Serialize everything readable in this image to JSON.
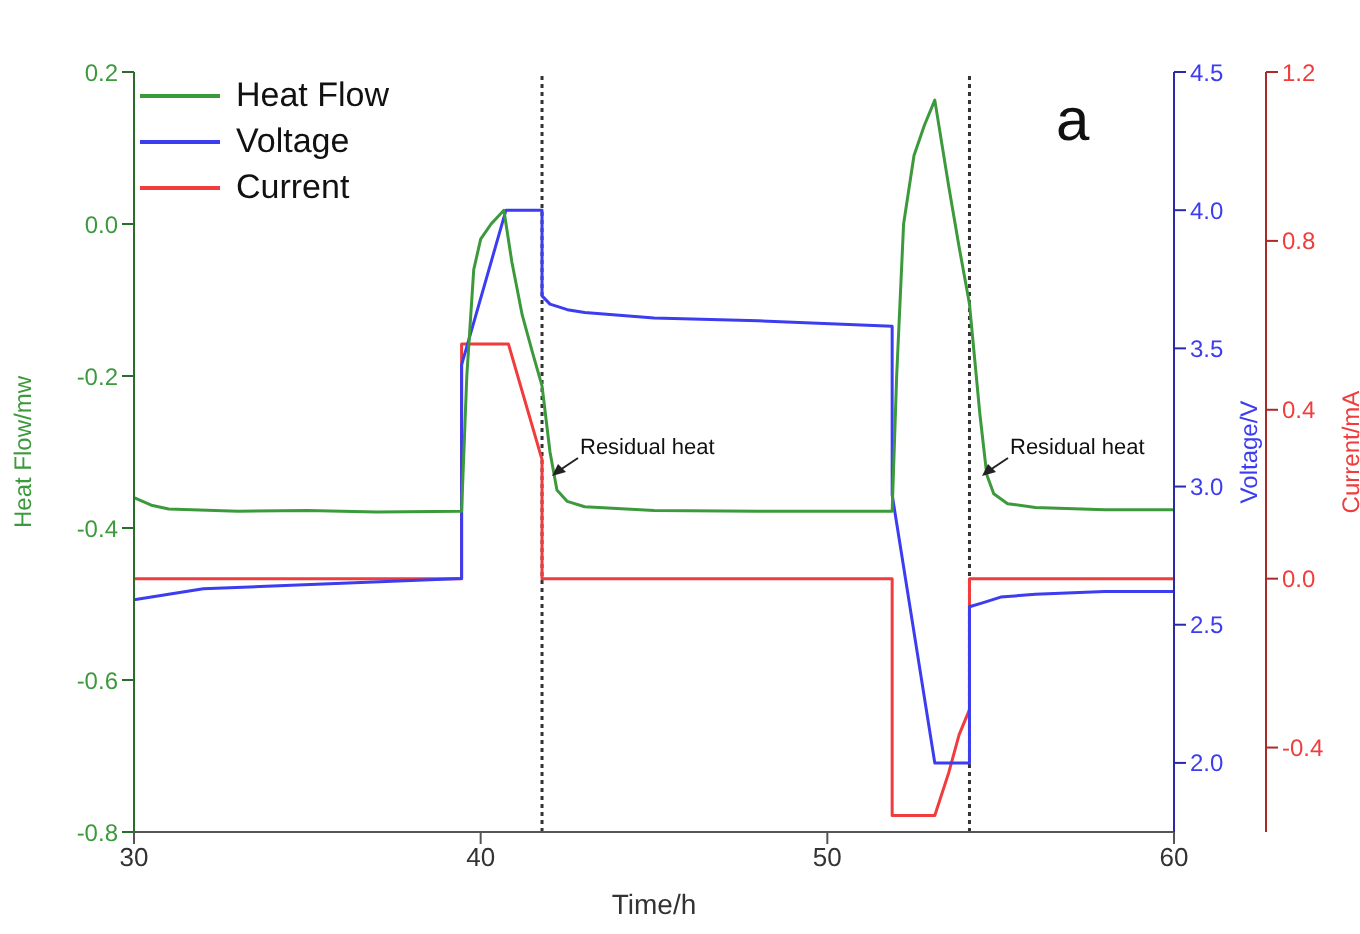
{
  "chart_data": {
    "type": "line",
    "xlabel": "Time/h",
    "ylabel": "Heat Flow/mw",
    "y2label": "Voltage/V",
    "y3label": "Current/mA",
    "xlim": [
      30,
      60
    ],
    "xticks": [
      30,
      40,
      50,
      60
    ],
    "ylim": [
      -0.8,
      0.2
    ],
    "yticks": [
      -0.8,
      -0.6,
      -0.4,
      -0.2,
      {
        "value": 0,
        "label": "0.0"
      },
      0.2
    ],
    "y2lim": [
      1.75,
      4.5
    ],
    "y2ticks": [
      {
        "value": 2,
        "label": "2.0"
      },
      2.5,
      {
        "value": 3,
        "label": "3.0"
      },
      3.5,
      {
        "value": 4,
        "label": "4.0"
      },
      4.5
    ],
    "y3lim": [
      -0.6,
      1.2
    ],
    "y3ticks": [
      -0.4,
      {
        "value": 0,
        "label": "0.0"
      },
      0.4,
      0.8,
      1.2
    ],
    "legend": "top left",
    "series": [
      {
        "name": "Heat Flow",
        "color": "#3c9a3c",
        "axis": "y",
        "x": [
          30,
          30.5,
          31,
          33,
          35,
          37,
          39.45,
          39.6,
          39.8,
          40,
          40.3,
          40.67,
          40.9,
          41.2,
          41.5,
          41.77,
          42,
          42.2,
          42.5,
          43,
          45,
          48,
          51.87,
          52,
          52.2,
          52.5,
          52.8,
          53.1,
          53.5,
          53.8,
          54.1,
          54.4,
          54.6,
          54.8,
          55.2,
          56,
          58,
          60
        ],
        "values": [
          -0.36,
          -0.37,
          -0.375,
          -0.378,
          -0.377,
          -0.379,
          -0.378,
          -0.2,
          -0.06,
          -0.02,
          0.0,
          0.018,
          -0.05,
          -0.12,
          -0.17,
          -0.213,
          -0.3,
          -0.35,
          -0.365,
          -0.372,
          -0.377,
          -0.378,
          -0.378,
          -0.2,
          0.0,
          0.09,
          0.13,
          0.163,
          0.05,
          -0.03,
          -0.105,
          -0.25,
          -0.33,
          -0.355,
          -0.368,
          -0.373,
          -0.376,
          -0.376
        ]
      },
      {
        "name": "Voltage",
        "color": "#3c3cf0",
        "axis": "y2",
        "x": [
          30,
          31,
          32,
          34,
          36,
          39.45,
          39.45,
          40.73,
          41.77,
          41.77,
          42,
          42.5,
          43,
          45,
          48,
          51.87,
          51.87,
          53.1,
          54.1,
          54.1,
          54.5,
          55,
          56,
          58,
          60
        ],
        "values": [
          2.59,
          2.61,
          2.63,
          2.64,
          2.65,
          2.667,
          3.44,
          4.0,
          4.0,
          3.69,
          3.66,
          3.64,
          3.63,
          3.61,
          3.6,
          3.58,
          2.97,
          2.0,
          2.0,
          2.565,
          2.58,
          2.6,
          2.61,
          2.62,
          2.62
        ]
      },
      {
        "name": "Current",
        "color": "#f03c3c",
        "axis": "y3",
        "x": [
          30,
          39.45,
          39.45,
          40.8,
          41.77,
          41.77,
          51.87,
          51.87,
          53.1,
          53.5,
          53.8,
          54.1,
          54.1,
          60
        ],
        "values": [
          0.0,
          0.0,
          0.556,
          0.556,
          0.282,
          0.0,
          0.0,
          -0.561,
          -0.561,
          -0.46,
          -0.37,
          -0.31,
          0.0,
          0.0
        ]
      }
    ],
    "ref_lines": [
      {
        "axis": "x",
        "value": 41.77,
        "color": "#333333",
        "line_style": "dotted"
      },
      {
        "axis": "x",
        "value": 54.1,
        "color": "#333333",
        "line_style": "dotted"
      }
    ],
    "annotations": [
      "a",
      "Residual heat",
      "Residual heat"
    ]
  }
}
